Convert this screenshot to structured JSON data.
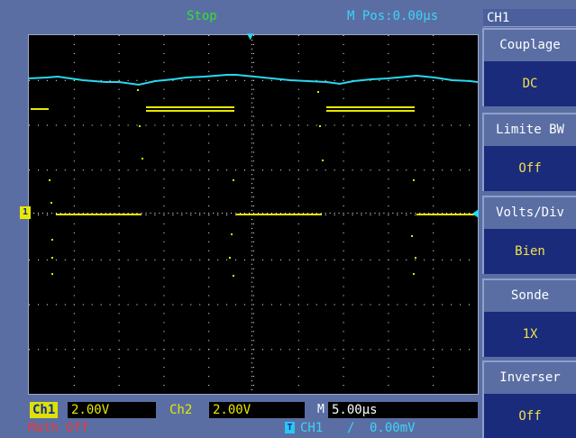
{
  "status": {
    "run_state": "Stop",
    "m_pos_label": "M Pos:",
    "m_pos_value": "0.00µs"
  },
  "bottom_bar": {
    "ch1_label": "Ch1",
    "ch1_scale": "2.00V",
    "ch2_label": "Ch2",
    "ch2_scale": "2.00V",
    "timebase_label": "M",
    "timebase_value": "5.00µs",
    "math_status": "Math Off",
    "trigger_icon": "T",
    "trigger_source": "CH1",
    "trigger_slope": "/",
    "trigger_level": "0.00mV"
  },
  "menu": {
    "title": "CH1",
    "items": [
      {
        "label": "Couplage",
        "value": "DC"
      },
      {
        "label": "Limite  BW",
        "value": "Off"
      },
      {
        "label": "Volts/Div",
        "value": "Bien"
      },
      {
        "label": "Sonde",
        "value": "1X"
      },
      {
        "label": "Inverser",
        "value": "Off"
      }
    ]
  },
  "markers": {
    "ch1_ground": "1",
    "trigger_position": "▼"
  },
  "colors": {
    "ch1_trace": "#e8e800",
    "ch2_trace": "#29d8f0",
    "graticule_dots": "#ffffff",
    "background": "#5a6ea4",
    "menu_value": "#f0e04a"
  }
}
